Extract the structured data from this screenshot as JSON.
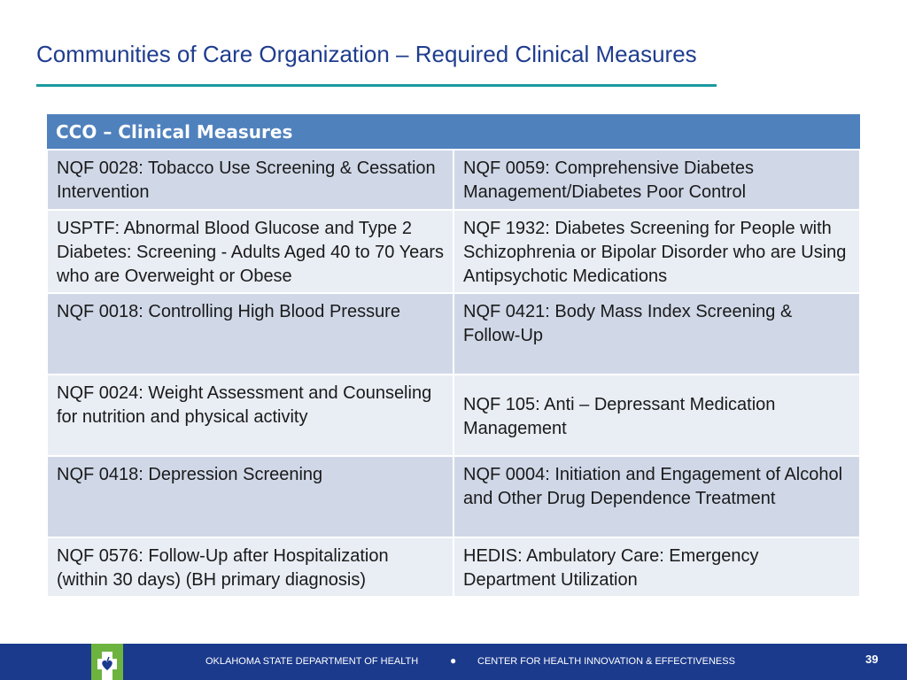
{
  "slide": {
    "title": "Communities of Care Organization – Required Clinical Measures"
  },
  "table": {
    "header": "CCO – Clinical Measures",
    "rows": [
      {
        "left": "NQF 0028: Tobacco Use Screening & Cessation Intervention",
        "right": "NQF 0059: Comprehensive  Diabetes Management/Diabetes Poor Control"
      },
      {
        "left": "USPTF: Abnormal Blood Glucose and Type 2 Diabetes: Screening - Adults Aged 40 to 70 Years who are Overweight or Obese",
        "right": "NQF 1932: Diabetes Screening for People with Schizophrenia or Bipolar Disorder who are Using Antipsychotic Medications"
      },
      {
        "left": "NQF 0018: Controlling High Blood Pressure",
        "right": "NQF 0421: Body Mass Index Screening & Follow-Up"
      },
      {
        "left": "NQF 0024: Weight Assessment and Counseling for nutrition and physical activity",
        "right": "NQF 105: Anti – Depressant Medication Management"
      },
      {
        "left": "NQF 0418: Depression Screening",
        "right": "NQF 0004: Initiation and Engagement of Alcohol and Other Drug Dependence Treatment"
      },
      {
        "left": "NQF 0576: Follow-Up after Hospitalization (within 30 days) (BH primary diagnosis)",
        "right": "HEDIS: Ambulatory Care: Emergency Department Utilization"
      }
    ]
  },
  "footer": {
    "logo_icon": "oklahoma-health-logo-icon",
    "org": "OKLAHOMA STATE DEPARTMENT OF HEALTH",
    "separator": "●",
    "center": "CENTER FOR HEALTH INNOVATION & EFFECTIVENESS",
    "page_number": "39"
  },
  "colors": {
    "title": "#1f3d8f",
    "rule": "#1a9aa0",
    "table_header": "#4f81bd",
    "row_dark": "#d0d8e8",
    "row_light": "#e9edf4",
    "footer_bg": "#1b3a8c",
    "logo_green": "#6db33f"
  }
}
